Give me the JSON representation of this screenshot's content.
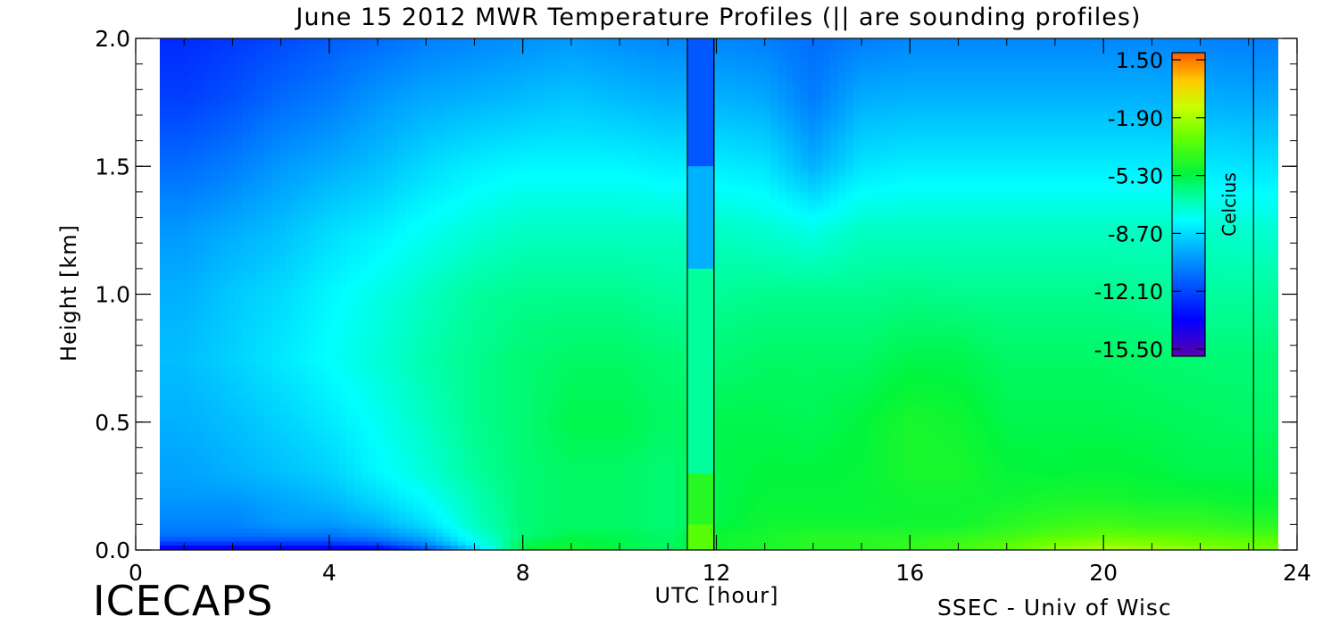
{
  "chart_data": {
    "type": "heatmap",
    "title": "June 15 2012 MWR Temperature Profiles (|| are sounding profiles)",
    "xlabel": "UTC [hour]",
    "ylabel": "Height [km]",
    "xlim": [
      0,
      24
    ],
    "ylim": [
      0,
      2.0
    ],
    "x_ticks": [
      "0",
      "4",
      "8",
      "12",
      "16",
      "20",
      "24"
    ],
    "y_ticks": [
      "0.0",
      "0.5",
      "1.0",
      "1.5",
      "2.0"
    ],
    "colorbar": {
      "label": "Celcius",
      "ticks": [
        "1.50",
        "-1.90",
        "-5.30",
        "-8.70",
        "-12.10",
        "-15.50"
      ],
      "range": [
        -15.5,
        1.5
      ]
    },
    "sounding_times": [
      11.4,
      11.95,
      23.1
    ],
    "data_x_range": [
      0.5,
      23.6
    ],
    "heights_km": [
      0.0,
      0.02,
      0.05,
      0.1,
      0.2,
      0.3,
      0.5,
      0.75,
      1.0,
      1.25,
      1.5,
      1.75,
      2.0
    ],
    "times_hr": [
      0.5,
      1,
      2,
      3,
      4,
      5,
      6,
      7,
      8,
      9,
      10,
      11,
      12,
      13,
      14,
      15,
      16,
      17,
      18,
      19,
      20,
      21,
      22,
      23,
      23.6
    ],
    "temperature_c": [
      [
        -14.5,
        -14.5,
        -14.5,
        -14.5,
        -14.5,
        -14,
        -12,
        -9,
        -5.5,
        -5,
        -5.5,
        -5.8,
        -5,
        -4.8,
        -4.5,
        -4.5,
        -4.3,
        -4,
        -3.5,
        -2.5,
        -2,
        -2.2,
        -2.5,
        -3,
        -3
      ],
      [
        -12.5,
        -12.5,
        -12.5,
        -12.5,
        -12.5,
        -12,
        -10.5,
        -8,
        -5.5,
        -5,
        -5.5,
        -5.8,
        -5,
        -4.8,
        -4.5,
        -4.5,
        -4.3,
        -4,
        -3.5,
        -2.8,
        -2.5,
        -2.7,
        -3,
        -3.2,
        -3.2
      ],
      [
        -11,
        -11,
        -11,
        -11,
        -11,
        -10.5,
        -9.5,
        -7.5,
        -6,
        -5.5,
        -5.5,
        -5.8,
        -5,
        -4.8,
        -4.5,
        -4.5,
        -4.5,
        -4.3,
        -4,
        -3.5,
        -3.2,
        -3.3,
        -3.5,
        -3.7,
        -3.7
      ],
      [
        -10.5,
        -10.5,
        -10.5,
        -10,
        -10,
        -9.5,
        -8.5,
        -7,
        -6,
        -5.8,
        -5.8,
        -6,
        -5.5,
        -5,
        -5,
        -5,
        -5,
        -5,
        -4.5,
        -4.2,
        -4,
        -4.2,
        -4.2,
        -4.5,
        -4.5
      ],
      [
        -10,
        -10,
        -10,
        -9.7,
        -9.3,
        -8.6,
        -7.8,
        -6.8,
        -6,
        -5.8,
        -5.8,
        -6,
        -5.5,
        -5.2,
        -5.2,
        -5.2,
        -5,
        -5,
        -5,
        -4.8,
        -4.8,
        -5,
        -5,
        -5.2,
        -5.2
      ],
      [
        -9.8,
        -9.8,
        -9.5,
        -9.2,
        -8.8,
        -8,
        -7.3,
        -6.5,
        -6,
        -5.8,
        -5.8,
        -6,
        -5.5,
        -5.3,
        -5.3,
        -5.2,
        -4.8,
        -4.8,
        -5.2,
        -5.3,
        -5.2,
        -5.3,
        -5.5,
        -5.5,
        -5.5
      ],
      [
        -9.5,
        -9.5,
        -9.2,
        -8.8,
        -8.3,
        -7.7,
        -7,
        -6.3,
        -6,
        -5.5,
        -5.5,
        -5.8,
        -5.5,
        -5.5,
        -5.6,
        -5.3,
        -4.8,
        -5,
        -5.5,
        -5.5,
        -5.5,
        -5.6,
        -5.7,
        -5.8,
        -5.8
      ],
      [
        -9.2,
        -9.2,
        -8.8,
        -8.3,
        -7.8,
        -7.3,
        -6.7,
        -6.3,
        -6,
        -5.8,
        -5.8,
        -6,
        -6,
        -5.8,
        -5.8,
        -5.8,
        -5.5,
        -5.5,
        -5.8,
        -5.8,
        -5.8,
        -5.9,
        -6,
        -6,
        -6
      ],
      [
        -9.5,
        -9.5,
        -9,
        -8.6,
        -8,
        -7.5,
        -7,
        -6.5,
        -6.3,
        -6.3,
        -6.3,
        -6.5,
        -6.4,
        -6.3,
        -6.3,
        -6.3,
        -6.2,
        -6.3,
        -6.3,
        -6.3,
        -6.3,
        -6.4,
        -6.5,
        -6.5,
        -6.5
      ],
      [
        -10,
        -10,
        -9.6,
        -9.2,
        -8.6,
        -8.2,
        -7.7,
        -7.3,
        -7,
        -7,
        -7,
        -7,
        -7,
        -7.2,
        -7.5,
        -7,
        -7,
        -7,
        -7,
        -7,
        -7,
        -7,
        -7,
        -7.2,
        -7.2
      ],
      [
        -11,
        -11,
        -10.6,
        -10,
        -9.6,
        -9.2,
        -8.6,
        -8.2,
        -8,
        -8,
        -8,
        -8.2,
        -8.2,
        -8.4,
        -9.5,
        -8.4,
        -8.2,
        -8.2,
        -8.2,
        -8.2,
        -8.2,
        -8.2,
        -8.3,
        -8.4,
        -8.4
      ],
      [
        -12,
        -12,
        -11.6,
        -11,
        -10.6,
        -10,
        -9.6,
        -9.4,
        -9.2,
        -9,
        -9.2,
        -9.4,
        -9.4,
        -9.6,
        -10.6,
        -9.5,
        -9.4,
        -9.4,
        -9.4,
        -9.4,
        -9.4,
        -9.4,
        -9.5,
        -9.6,
        -9.6
      ],
      [
        -12.5,
        -12.5,
        -12.2,
        -11.8,
        -11.4,
        -11,
        -10.6,
        -10.4,
        -10.2,
        -10,
        -10.2,
        -10.4,
        -10.4,
        -10.6,
        -11,
        -10.6,
        -10.4,
        -10.4,
        -10.4,
        -10.4,
        -10.4,
        -10.4,
        -10.5,
        -10.6,
        -10.6
      ]
    ]
  }
}
